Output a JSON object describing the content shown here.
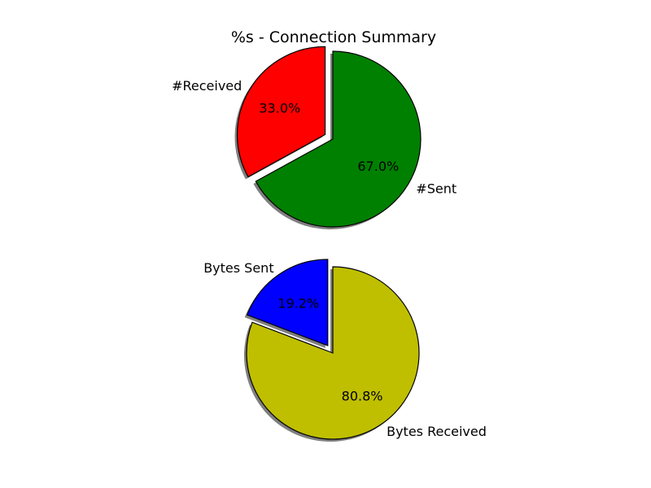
{
  "chart_data": [
    {
      "type": "pie",
      "title": "%s - Connection Summary",
      "slices": [
        {
          "label": "#Received",
          "value": 33.0,
          "display": "33.0%",
          "color": "#ff0000",
          "exploded": true
        },
        {
          "label": "#Sent",
          "value": 67.0,
          "display": "67.0%",
          "color": "#008000",
          "exploded": false
        }
      ],
      "shadow": true,
      "edgecolor": "#000000"
    },
    {
      "type": "pie",
      "title": "",
      "slices": [
        {
          "label": "Bytes Sent",
          "value": 19.2,
          "display": "19.2%",
          "color": "#0000ff",
          "exploded": true
        },
        {
          "label": "Bytes Received",
          "value": 80.8,
          "display": "80.8%",
          "color": "#bfbf00",
          "exploded": false
        }
      ],
      "shadow": true,
      "edgecolor": "#000000"
    }
  ]
}
